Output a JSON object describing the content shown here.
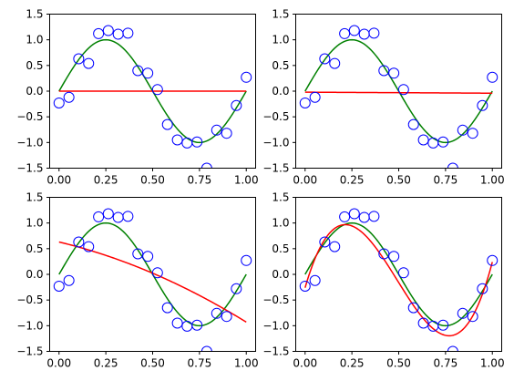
{
  "chart_data": [
    {
      "type": "scatter",
      "xlim": [
        -0.05,
        1.05
      ],
      "ylim": [
        -1.5,
        1.5
      ],
      "xticks": [
        0.0,
        0.25,
        0.5,
        0.75,
        1.0
      ],
      "xtick_labels": [
        "0.00",
        "0.25",
        "0.50",
        "0.75",
        "1.00"
      ],
      "yticks": [
        -1.5,
        -1.0,
        -0.5,
        0.0,
        0.5,
        1.0,
        1.5
      ],
      "ytick_labels": [
        "−1.5",
        "−1.0",
        "−0.5",
        "0.0",
        "0.5",
        "1.0",
        "1.5"
      ],
      "grid": false,
      "points": {
        "marker": "open-circle",
        "color": "#0000ff",
        "x": [
          0.0,
          0.053,
          0.105,
          0.158,
          0.211,
          0.263,
          0.316,
          0.368,
          0.421,
          0.474,
          0.526,
          0.579,
          0.632,
          0.684,
          0.737,
          0.789,
          0.842,
          0.895,
          0.947,
          1.0
        ],
        "y": [
          -0.23,
          -0.12,
          0.63,
          0.54,
          1.12,
          1.18,
          1.11,
          1.13,
          0.4,
          0.35,
          0.03,
          -0.65,
          -0.95,
          -1.01,
          -0.99,
          -1.5,
          -0.76,
          -0.82,
          -0.28,
          0.27
        ]
      },
      "true_function": {
        "color": "#008000",
        "expression": "sin(2*pi*x)"
      },
      "fit": {
        "color": "#ff0000",
        "degree": 0,
        "coefficients": [
          0.0
        ]
      }
    },
    {
      "type": "scatter",
      "xlim": [
        -0.05,
        1.05
      ],
      "ylim": [
        -1.5,
        1.5
      ],
      "xticks": [
        0.0,
        0.25,
        0.5,
        0.75,
        1.0
      ],
      "xtick_labels": [
        "0.00",
        "0.25",
        "0.50",
        "0.75",
        "1.00"
      ],
      "yticks": [
        -1.5,
        -1.0,
        -0.5,
        0.0,
        0.5,
        1.0,
        1.5
      ],
      "ytick_labels": [
        "−1.5",
        "−1.0",
        "−0.5",
        "0.0",
        "0.5",
        "1.0",
        "1.5"
      ],
      "grid": false,
      "points": {
        "marker": "open-circle",
        "color": "#0000ff",
        "x": [
          0.0,
          0.053,
          0.105,
          0.158,
          0.211,
          0.263,
          0.316,
          0.368,
          0.421,
          0.474,
          0.526,
          0.579,
          0.632,
          0.684,
          0.737,
          0.789,
          0.842,
          0.895,
          0.947,
          1.0
        ],
        "y": [
          -0.23,
          -0.12,
          0.63,
          0.54,
          1.12,
          1.18,
          1.11,
          1.13,
          0.4,
          0.35,
          0.03,
          -0.65,
          -0.95,
          -1.01,
          -0.99,
          -1.5,
          -0.76,
          -0.82,
          -0.28,
          0.27
        ]
      },
      "true_function": {
        "color": "#008000",
        "expression": "sin(2*pi*x)"
      },
      "fit": {
        "color": "#ff0000",
        "degree": 1,
        "coefficients": [
          -0.02,
          -0.02
        ]
      }
    },
    {
      "type": "scatter",
      "xlim": [
        -0.05,
        1.05
      ],
      "ylim": [
        -1.5,
        1.5
      ],
      "xticks": [
        0.0,
        0.25,
        0.5,
        0.75,
        1.0
      ],
      "xtick_labels": [
        "0.00",
        "0.25",
        "0.50",
        "0.75",
        "1.00"
      ],
      "yticks": [
        -1.5,
        -1.0,
        -0.5,
        0.0,
        0.5,
        1.0,
        1.5
      ],
      "ytick_labels": [
        "−1.5",
        "−1.0",
        "−0.5",
        "0.0",
        "0.5",
        "1.0",
        "1.5"
      ],
      "grid": false,
      "points": {
        "marker": "open-circle",
        "color": "#0000ff",
        "x": [
          0.0,
          0.053,
          0.105,
          0.158,
          0.211,
          0.263,
          0.316,
          0.368,
          0.421,
          0.474,
          0.526,
          0.579,
          0.632,
          0.684,
          0.737,
          0.789,
          0.842,
          0.895,
          0.947,
          1.0
        ],
        "y": [
          -0.23,
          -0.12,
          0.63,
          0.54,
          1.12,
          1.18,
          1.11,
          1.13,
          0.4,
          0.35,
          0.03,
          -0.65,
          -0.95,
          -1.01,
          -0.99,
          -1.5,
          -0.76,
          -0.82,
          -0.28,
          0.27
        ]
      },
      "true_function": {
        "color": "#008000",
        "expression": "sin(2*pi*x)"
      },
      "fit": {
        "color": "#ff0000",
        "degree": 2,
        "coefficients": [
          0.63,
          -0.87,
          -0.69
        ]
      }
    },
    {
      "type": "scatter",
      "xlim": [
        -0.05,
        1.05
      ],
      "ylim": [
        -1.5,
        1.5
      ],
      "xticks": [
        0.0,
        0.25,
        0.5,
        0.75,
        1.0
      ],
      "xtick_labels": [
        "0.00",
        "0.25",
        "0.50",
        "0.75",
        "1.00"
      ],
      "yticks": [
        -1.5,
        -1.0,
        -0.5,
        0.0,
        0.5,
        1.0,
        1.5
      ],
      "ytick_labels": [
        "−1.5",
        "−1.0",
        "−0.5",
        "0.0",
        "0.5",
        "1.0",
        "1.5"
      ],
      "grid": false,
      "points": {
        "marker": "open-circle",
        "color": "#0000ff",
        "x": [
          0.0,
          0.053,
          0.105,
          0.158,
          0.211,
          0.263,
          0.316,
          0.368,
          0.421,
          0.474,
          0.526,
          0.579,
          0.632,
          0.684,
          0.737,
          0.789,
          0.842,
          0.895,
          0.947,
          1.0
        ],
        "y": [
          -0.23,
          -0.12,
          0.63,
          0.54,
          1.12,
          1.18,
          1.11,
          1.13,
          0.4,
          0.35,
          0.03,
          -0.65,
          -0.95,
          -1.01,
          -0.99,
          -1.5,
          -0.76,
          -0.82,
          -0.28,
          0.27
        ]
      },
      "true_function": {
        "color": "#008000",
        "expression": "sin(2*pi*x)"
      },
      "fit": {
        "color": "#ff0000",
        "degree": 3,
        "coefficients": [
          -0.26,
          12.6,
          -37.5,
          25.4
        ]
      }
    }
  ]
}
